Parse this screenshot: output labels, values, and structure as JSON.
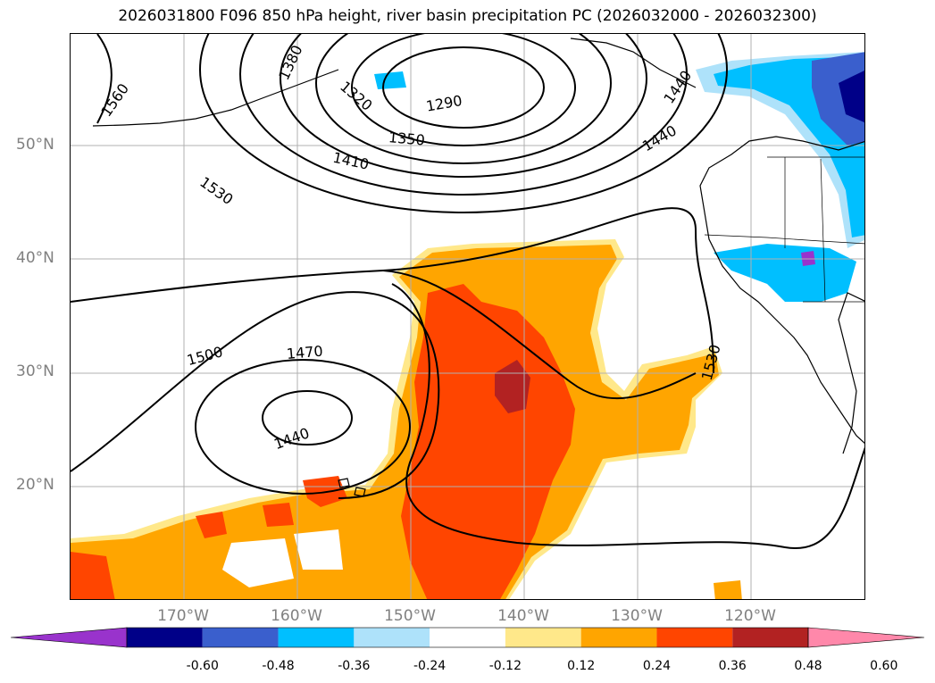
{
  "title": "2026031800 F096 850 hPa height, river basin precipitation PC (2026032000 - 2026032300)",
  "lat_labels": [
    "50°N",
    "40°N",
    "30°N",
    "20°N"
  ],
  "lon_labels": [
    "170°W",
    "160°W",
    "150°W",
    "140°W",
    "130°W",
    "120°W"
  ],
  "contour_labels": [
    "1560",
    "1380",
    "1320",
    "1290",
    "1350",
    "1410",
    "1530",
    "1440",
    "1500",
    "1470",
    "1440",
    "1530",
    "1440"
  ],
  "colorbar": {
    "ticks": [
      "-0.60",
      "-0.48",
      "-0.36",
      "-0.24",
      "-0.12",
      "0.12",
      "0.24",
      "0.36",
      "0.48",
      "0.60"
    ],
    "colors": [
      "#9933cc",
      "#000088",
      "#3a5fcd",
      "#00bfff",
      "#aee2fa",
      "#ffffff",
      "#ffe88a",
      "#ffa500",
      "#ff4500",
      "#b22222",
      "#ff88aa"
    ]
  }
}
